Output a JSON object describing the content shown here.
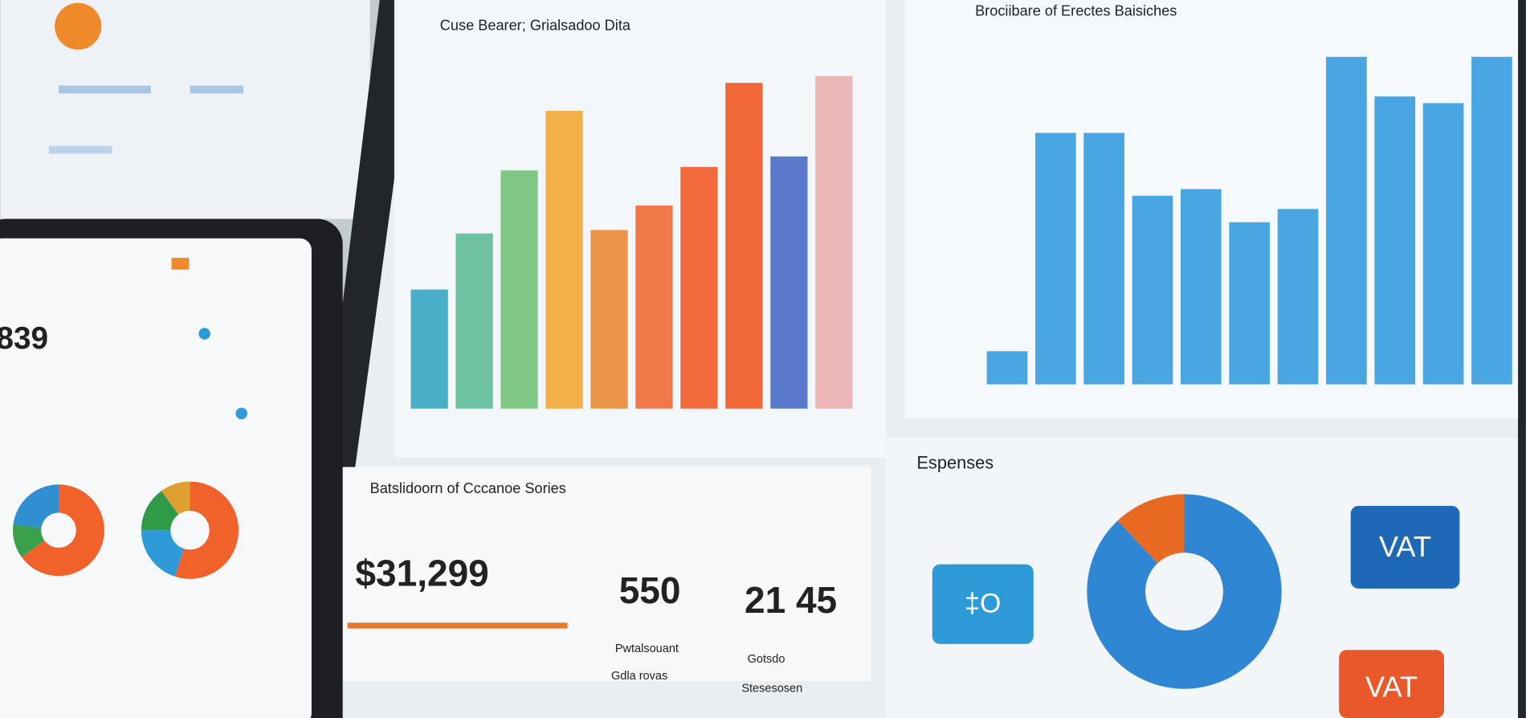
{
  "tablet": {
    "big_number": "839",
    "donut_left": {
      "values": [
        65,
        12,
        23
      ],
      "colors": [
        "#f0622a",
        "#3aa04a",
        "#2f8fd0"
      ]
    },
    "donut_right": {
      "values": [
        55,
        20,
        15,
        10
      ],
      "colors": [
        "#f0622a",
        "#2f9ad8",
        "#2f9a48",
        "#e0a030"
      ]
    }
  },
  "main_chart": {
    "title": "Cuse Bearer; Grialsadoo Dita",
    "ylim": [
      0,
      100
    ],
    "values": [
      34,
      50,
      68,
      85,
      51,
      58,
      69,
      93,
      72,
      95
    ],
    "colors": [
      "#3aa8c4",
      "#62bd9a",
      "#74c27a",
      "#f2a93a",
      "#ea8c3a",
      "#ef6d3a",
      "#f25e2c",
      "#ef5a27",
      "#4b6fc6",
      "#e8b0b0"
    ]
  },
  "right_chart": {
    "title": "Brociibare of Erectes Baisiches",
    "ylim": [
      0,
      100
    ],
    "values": [
      10,
      76,
      76,
      57,
      59,
      49,
      53,
      99,
      87,
      85,
      99
    ],
    "color": "#3a9ee0"
  },
  "summary": {
    "title": "Batslidoorn of Cccanoe Sories",
    "amount": "$31,299",
    "count": "550",
    "time": "21 45",
    "labels": [
      "Pwtalsouant",
      "Gdla rovas",
      "Gotsdo",
      "Stesesosen"
    ]
  },
  "expenses": {
    "title": "Espenses",
    "values": [
      88,
      12
    ],
    "colors": [
      "#2f86d2",
      "#e86a22"
    ],
    "button_icon": "‡O",
    "button_top": "VAT",
    "button_bottom": "VAT"
  }
}
